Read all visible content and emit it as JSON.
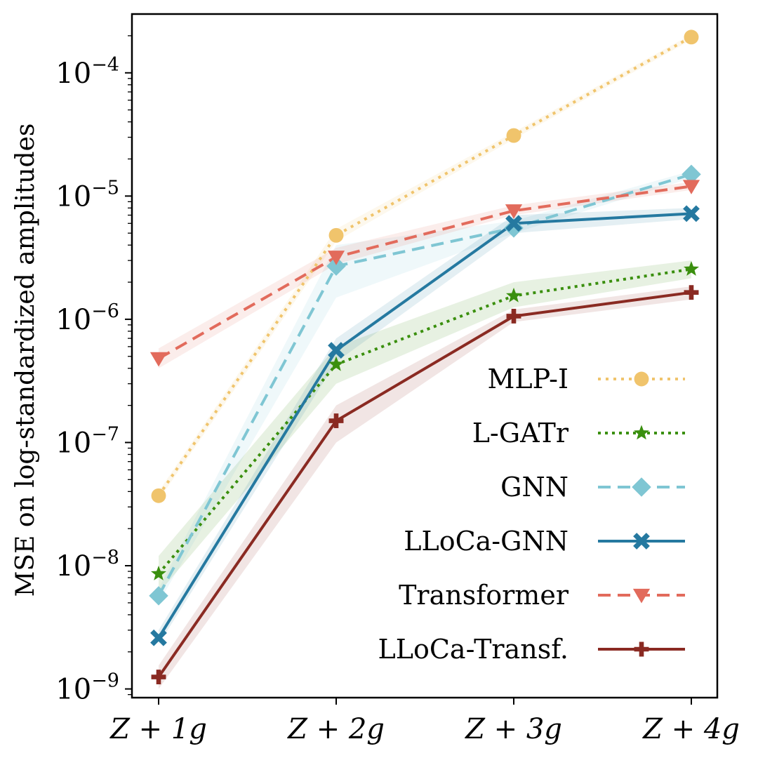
{
  "chart_data": {
    "type": "line",
    "title": "",
    "xlabel": "",
    "ylabel": "MSE on log-standardized amplitudes",
    "yscale": "log",
    "ylim": [
      8.5e-10,
      0.0003
    ],
    "categories": [
      "Z + 1g",
      "Z + 2g",
      "Z + 3g",
      "Z + 4g"
    ],
    "y_ticks": [
      {
        "value": 1e-09,
        "base": "10",
        "exp": "−9"
      },
      {
        "value": 1e-08,
        "base": "10",
        "exp": "−8"
      },
      {
        "value": 1e-07,
        "base": "10",
        "exp": "−7"
      },
      {
        "value": 1e-06,
        "base": "10",
        "exp": "−6"
      },
      {
        "value": 1e-05,
        "base": "10",
        "exp": "−5"
      },
      {
        "value": 0.0001,
        "base": "10",
        "exp": "−4"
      }
    ],
    "legend_position": "lower-right",
    "series": [
      {
        "name": "MLP-I",
        "color": "#f0c46c",
        "dash": "dotted",
        "marker": "circle",
        "values": [
          3.7e-08,
          4.8e-06,
          3.1e-05,
          0.000195
        ],
        "band_low": [
          3.4e-08,
          4.3e-06,
          2.9e-05,
          0.000185
        ],
        "band_high": [
          4e-08,
          5.4e-06,
          3.3e-05,
          0.000205
        ]
      },
      {
        "name": "L-GATr",
        "color": "#3a8f0e",
        "dash": "dotted-fine",
        "marker": "star",
        "values": [
          8.6e-09,
          4.3e-07,
          1.55e-06,
          2.55e-06
        ],
        "band_low": [
          6e-09,
          3e-07,
          1.25e-06,
          2.15e-06
        ],
        "band_high": [
          1.2e-08,
          6e-07,
          2e-06,
          3e-06
        ]
      },
      {
        "name": "GNN",
        "color": "#7fc6d3",
        "dash": "dashed",
        "marker": "diamond",
        "values": [
          5.7e-09,
          2.7e-06,
          5.5e-06,
          1.5e-05
        ],
        "band_low": [
          5e-09,
          1.5e-06,
          5e-06,
          1.4e-05
        ],
        "band_high": [
          6.5e-09,
          4e-06,
          6.3e-06,
          1.6e-05
        ]
      },
      {
        "name": "LLoCa-GNN",
        "color": "#2579a0",
        "dash": "solid",
        "marker": "x",
        "values": [
          2.6e-09,
          5.6e-07,
          6e-06,
          7.2e-06
        ],
        "band_low": [
          2.3e-09,
          4.5e-07,
          5e-06,
          6.5e-06
        ],
        "band_high": [
          3e-09,
          7e-07,
          7e-06,
          8e-06
        ]
      },
      {
        "name": "Transformer",
        "color": "#e26b5c",
        "dash": "dashed",
        "marker": "triangle-down",
        "values": [
          4.8e-07,
          3.2e-06,
          7.6e-06,
          1.2e-05
        ],
        "band_low": [
          4e-07,
          2.8e-06,
          7e-06,
          1.12e-05
        ],
        "band_high": [
          5.8e-07,
          3.8e-06,
          8.4e-06,
          1.3e-05
        ]
      },
      {
        "name": "LLoCa-Transf.",
        "color": "#8a2a22",
        "dash": "solid",
        "marker": "plus",
        "values": [
          1.25e-09,
          1.5e-07,
          1.06e-06,
          1.65e-06
        ],
        "band_low": [
          1e-09,
          1e-07,
          9.5e-07,
          1.45e-06
        ],
        "band_high": [
          1.55e-09,
          2e-07,
          1.2e-06,
          1.85e-06
        ]
      }
    ]
  }
}
